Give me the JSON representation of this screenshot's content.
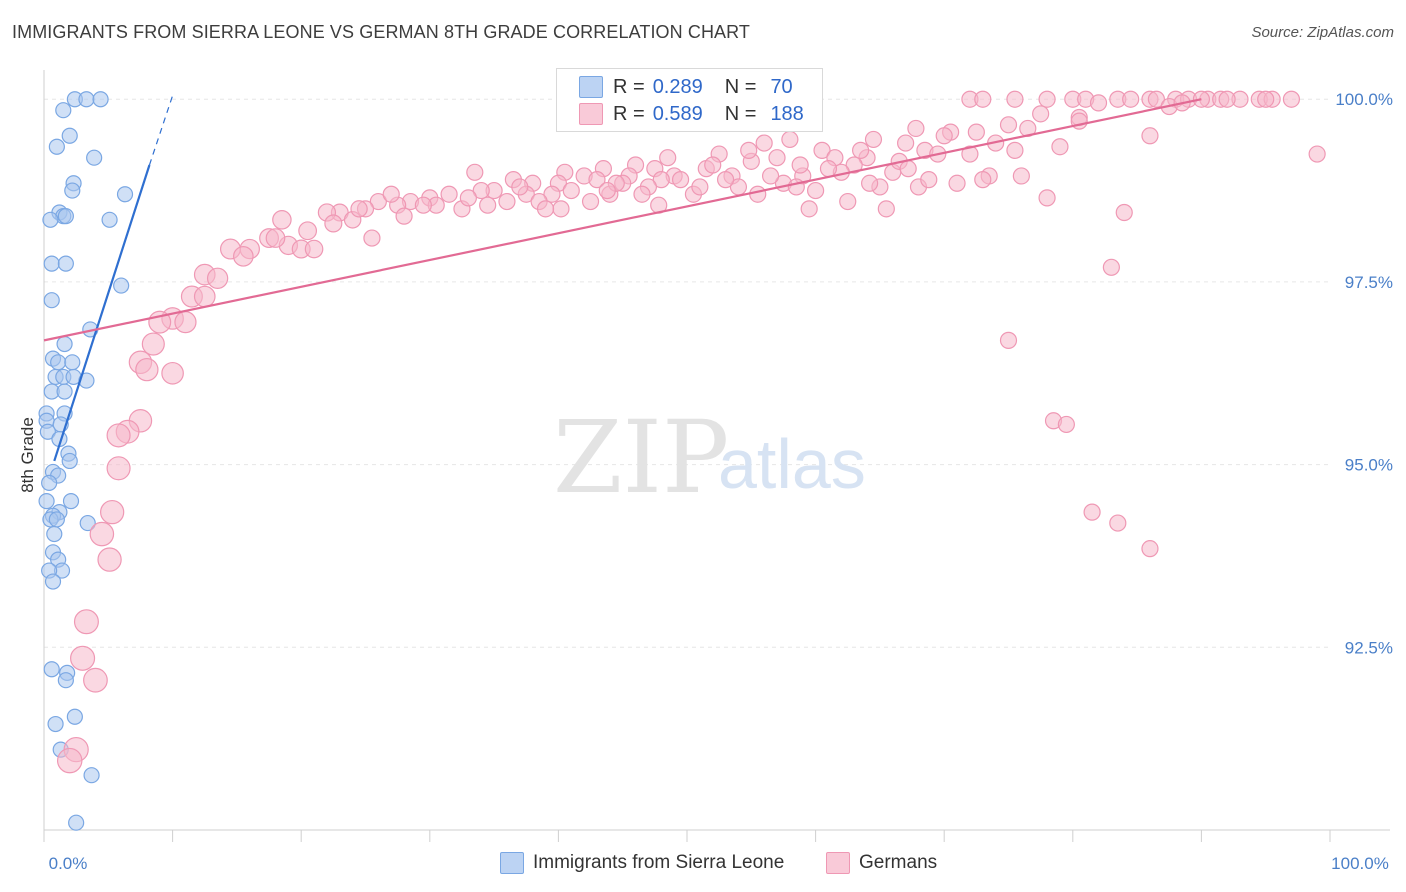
{
  "header": {
    "title": "IMMIGRANTS FROM SIERRA LEONE VS GERMAN 8TH GRADE CORRELATION CHART",
    "source": "Source: ZipAtlas.com"
  },
  "watermark": {
    "zip": "ZIP",
    "atlas": "atlas"
  },
  "legend": {
    "rows": [
      {
        "r_label": "R =",
        "r_value": "0.289",
        "n_label": "N =",
        "n_value": "70",
        "color": "#a9c6ee"
      },
      {
        "r_label": "R =",
        "r_value": "0.589",
        "n_label": "N =",
        "n_value": "188",
        "color": "#f6b8cb"
      }
    ]
  },
  "bottom_legend": [
    {
      "label": "Immigrants from Sierra Leone",
      "color": "#a9c6ee"
    },
    {
      "label": "Germans",
      "color": "#f6b8cb"
    }
  ],
  "chart_data": {
    "type": "scatter",
    "ylabel": "8th Grade",
    "xlim": [
      0,
      100
    ],
    "ylim": [
      90.0,
      100.4
    ],
    "x_tick_labels": [
      "0.0%",
      "100.0%"
    ],
    "y_ticks": [
      92.5,
      95.0,
      97.5,
      100.0
    ],
    "y_tick_labels": [
      "92.5%",
      "95.0%",
      "97.5%",
      "100.0%"
    ],
    "grid": true,
    "series": [
      {
        "name": "Immigrants from Sierra Leone",
        "color": "#7aa7e3",
        "fill": "#a9c6ee",
        "line_color": "#2f6fd0",
        "trend": {
          "x0": 0.8,
          "y0": 95.05,
          "x1": 8.2,
          "y1": 99.1,
          "dash_to_x": 10.0,
          "dash_to_y": 100.05
        },
        "points": [
          [
            2.4,
            100.0
          ],
          [
            3.3,
            100.0
          ],
          [
            4.4,
            100.0
          ],
          [
            1.5,
            99.85
          ],
          [
            2.0,
            99.5
          ],
          [
            1.0,
            99.35
          ],
          [
            3.9,
            99.2
          ],
          [
            2.3,
            98.85
          ],
          [
            2.2,
            98.75
          ],
          [
            6.3,
            98.7
          ],
          [
            1.2,
            98.45
          ],
          [
            1.5,
            98.4
          ],
          [
            1.7,
            98.4
          ],
          [
            0.5,
            98.35
          ],
          [
            5.1,
            98.35
          ],
          [
            0.6,
            97.75
          ],
          [
            1.7,
            97.75
          ],
          [
            6.0,
            97.45
          ],
          [
            0.6,
            97.25
          ],
          [
            3.6,
            96.85
          ],
          [
            1.6,
            96.65
          ],
          [
            0.7,
            96.45
          ],
          [
            1.1,
            96.4
          ],
          [
            2.2,
            96.4
          ],
          [
            0.9,
            96.2
          ],
          [
            1.5,
            96.2
          ],
          [
            2.3,
            96.2
          ],
          [
            3.3,
            96.15
          ],
          [
            0.6,
            96.0
          ],
          [
            1.6,
            96.0
          ],
          [
            0.2,
            95.7
          ],
          [
            1.6,
            95.7
          ],
          [
            0.2,
            95.6
          ],
          [
            1.3,
            95.55
          ],
          [
            0.3,
            95.45
          ],
          [
            1.2,
            95.35
          ],
          [
            1.9,
            95.15
          ],
          [
            2.0,
            95.05
          ],
          [
            0.7,
            94.9
          ],
          [
            1.1,
            94.85
          ],
          [
            0.4,
            94.75
          ],
          [
            0.2,
            94.5
          ],
          [
            2.1,
            94.5
          ],
          [
            1.2,
            94.35
          ],
          [
            0.7,
            94.3
          ],
          [
            0.5,
            94.25
          ],
          [
            1.0,
            94.25
          ],
          [
            3.4,
            94.2
          ],
          [
            0.8,
            94.05
          ],
          [
            0.7,
            93.8
          ],
          [
            1.1,
            93.7
          ],
          [
            1.4,
            93.55
          ],
          [
            0.4,
            93.55
          ],
          [
            0.7,
            93.4
          ],
          [
            0.6,
            92.2
          ],
          [
            1.8,
            92.15
          ],
          [
            1.7,
            92.05
          ],
          [
            2.4,
            91.55
          ],
          [
            0.9,
            91.45
          ],
          [
            1.3,
            91.1
          ],
          [
            3.7,
            90.75
          ],
          [
            2.5,
            90.1
          ]
        ]
      },
      {
        "name": "Germans",
        "color": "#ef98b4",
        "fill": "#f6b8cb",
        "line_color": "#e26a94",
        "trend": {
          "x0": 0,
          "y0": 96.7,
          "x1": 90,
          "y1": 100.0
        },
        "points": [
          [
            72.0,
            100.0
          ],
          [
            73.0,
            100.0
          ],
          [
            75.5,
            100.0
          ],
          [
            78.0,
            100.0
          ],
          [
            80.0,
            100.0
          ],
          [
            81.0,
            100.0
          ],
          [
            83.5,
            100.0
          ],
          [
            84.5,
            100.0
          ],
          [
            86.0,
            100.0
          ],
          [
            88.0,
            100.0
          ],
          [
            89.0,
            100.0
          ],
          [
            90.5,
            100.0
          ],
          [
            91.5,
            100.0
          ],
          [
            93.0,
            100.0
          ],
          [
            94.5,
            100.0
          ],
          [
            95.5,
            100.0
          ],
          [
            97.0,
            100.0
          ],
          [
            86.5,
            100.0
          ],
          [
            92.0,
            100.0
          ],
          [
            82.0,
            99.95
          ],
          [
            87.5,
            99.9
          ],
          [
            77.5,
            99.8
          ],
          [
            80.5,
            99.75
          ],
          [
            75.0,
            99.65
          ],
          [
            67.8,
            99.6
          ],
          [
            70.5,
            99.55
          ],
          [
            58.0,
            99.45
          ],
          [
            64.5,
            99.45
          ],
          [
            56.0,
            99.4
          ],
          [
            67.0,
            99.4
          ],
          [
            79.0,
            99.35
          ],
          [
            75.5,
            99.3
          ],
          [
            72.0,
            99.25
          ],
          [
            86.0,
            99.5
          ],
          [
            60.5,
            99.3
          ],
          [
            68.5,
            99.3
          ],
          [
            61.5,
            99.2
          ],
          [
            64.0,
            99.2
          ],
          [
            52.5,
            99.25
          ],
          [
            48.5,
            99.2
          ],
          [
            57.0,
            99.2
          ],
          [
            55.0,
            99.15
          ],
          [
            63.0,
            99.1
          ],
          [
            46.0,
            99.1
          ],
          [
            43.5,
            99.05
          ],
          [
            47.5,
            99.05
          ],
          [
            51.5,
            99.05
          ],
          [
            33.5,
            99.0
          ],
          [
            40.5,
            99.0
          ],
          [
            42.0,
            98.95
          ],
          [
            45.5,
            98.95
          ],
          [
            49.0,
            98.95
          ],
          [
            53.5,
            98.95
          ],
          [
            59.0,
            98.95
          ],
          [
            62.0,
            99.0
          ],
          [
            66.0,
            99.0
          ],
          [
            36.5,
            98.9
          ],
          [
            38.0,
            98.85
          ],
          [
            40.0,
            98.85
          ],
          [
            43.0,
            98.9
          ],
          [
            45.0,
            98.85
          ],
          [
            48.0,
            98.9
          ],
          [
            57.5,
            98.85
          ],
          [
            58.5,
            98.8
          ],
          [
            35.0,
            98.75
          ],
          [
            37.5,
            98.7
          ],
          [
            39.5,
            98.7
          ],
          [
            41.0,
            98.75
          ],
          [
            44.0,
            98.7
          ],
          [
            47.0,
            98.8
          ],
          [
            50.5,
            98.7
          ],
          [
            54.0,
            98.8
          ],
          [
            55.5,
            98.7
          ],
          [
            60.0,
            98.75
          ],
          [
            65.0,
            98.8
          ],
          [
            68.0,
            98.8
          ],
          [
            31.5,
            98.7
          ],
          [
            30.0,
            98.65
          ],
          [
            28.5,
            98.6
          ],
          [
            26.0,
            98.6
          ],
          [
            27.5,
            98.55
          ],
          [
            25.0,
            98.5
          ],
          [
            23.0,
            98.45
          ],
          [
            22.0,
            98.45
          ],
          [
            24.0,
            98.35
          ],
          [
            32.5,
            98.5
          ],
          [
            34.5,
            98.55
          ],
          [
            36.0,
            98.6
          ],
          [
            38.5,
            98.6
          ],
          [
            42.5,
            98.6
          ],
          [
            47.8,
            98.55
          ],
          [
            62.5,
            98.6
          ],
          [
            65.5,
            98.5
          ],
          [
            68.8,
            98.9
          ],
          [
            71.0,
            98.85
          ],
          [
            73.5,
            98.95
          ],
          [
            78.0,
            98.65
          ],
          [
            59.5,
            98.5
          ],
          [
            84.0,
            98.45
          ],
          [
            25.5,
            98.1
          ],
          [
            18.5,
            98.35
          ],
          [
            17.5,
            98.1
          ],
          [
            19.0,
            98.0
          ],
          [
            16.0,
            97.95
          ],
          [
            20.0,
            97.95
          ],
          [
            21.0,
            97.95
          ],
          [
            14.5,
            97.95
          ],
          [
            15.5,
            97.85
          ],
          [
            12.5,
            97.6
          ],
          [
            13.5,
            97.55
          ],
          [
            11.5,
            97.3
          ],
          [
            12.5,
            97.3
          ],
          [
            10.0,
            97.0
          ],
          [
            11.0,
            96.95
          ],
          [
            9.0,
            96.95
          ],
          [
            8.5,
            96.65
          ],
          [
            7.5,
            96.4
          ],
          [
            8.0,
            96.3
          ],
          [
            10.0,
            96.25
          ],
          [
            7.5,
            95.6
          ],
          [
            6.5,
            95.45
          ],
          [
            5.8,
            95.4
          ],
          [
            5.8,
            94.95
          ],
          [
            5.3,
            94.35
          ],
          [
            4.5,
            94.05
          ],
          [
            5.1,
            93.7
          ],
          [
            3.3,
            92.85
          ],
          [
            3.0,
            92.35
          ],
          [
            4.0,
            92.05
          ],
          [
            2.5,
            91.1
          ],
          [
            2.0,
            90.95
          ],
          [
            83.0,
            97.7
          ],
          [
            75.0,
            96.7
          ],
          [
            78.5,
            95.6
          ],
          [
            79.5,
            95.55
          ],
          [
            81.5,
            94.35
          ],
          [
            83.5,
            94.2
          ],
          [
            86.0,
            93.85
          ],
          [
            99.0,
            99.25
          ],
          [
            18.0,
            98.1
          ],
          [
            20.5,
            98.2
          ],
          [
            22.5,
            98.3
          ],
          [
            28.0,
            98.4
          ],
          [
            30.5,
            98.55
          ],
          [
            44.5,
            98.85
          ],
          [
            53.0,
            98.9
          ],
          [
            56.5,
            98.95
          ],
          [
            61.0,
            99.05
          ],
          [
            69.5,
            99.25
          ],
          [
            74.0,
            99.4
          ],
          [
            76.5,
            99.6
          ],
          [
            80.5,
            99.7
          ],
          [
            88.5,
            99.95
          ],
          [
            90.0,
            100.0
          ],
          [
            95.0,
            100.0
          ],
          [
            63.5,
            99.3
          ],
          [
            52.0,
            99.1
          ],
          [
            49.5,
            98.9
          ],
          [
            40.2,
            98.5
          ],
          [
            34.0,
            98.75
          ],
          [
            46.5,
            98.7
          ],
          [
            54.8,
            99.3
          ],
          [
            66.5,
            99.15
          ],
          [
            70.0,
            99.5
          ],
          [
            72.5,
            99.55
          ],
          [
            24.5,
            98.5
          ],
          [
            27.0,
            98.7
          ],
          [
            29.5,
            98.55
          ],
          [
            33.0,
            98.65
          ],
          [
            37.0,
            98.8
          ],
          [
            39.0,
            98.5
          ],
          [
            43.8,
            98.75
          ],
          [
            51.0,
            98.8
          ],
          [
            58.8,
            99.1
          ],
          [
            64.2,
            98.85
          ],
          [
            67.2,
            99.05
          ],
          [
            76.0,
            98.95
          ],
          [
            73.0,
            98.9
          ]
        ]
      }
    ]
  }
}
